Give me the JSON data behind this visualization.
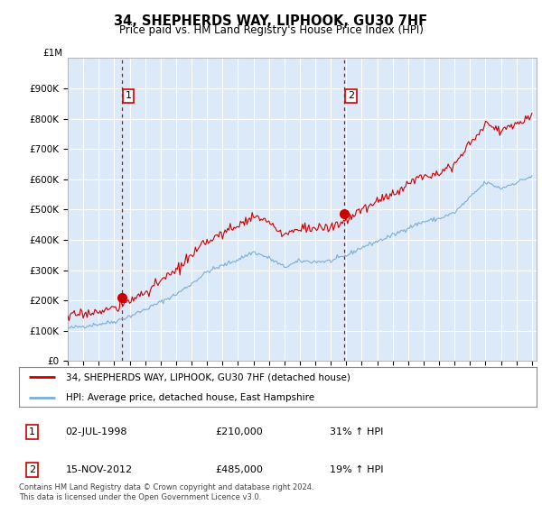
{
  "title": "34, SHEPHERDS WAY, LIPHOOK, GU30 7HF",
  "subtitle": "Price paid vs. HM Land Registry's House Price Index (HPI)",
  "ylim": [
    0,
    1000000
  ],
  "yticks": [
    0,
    100000,
    200000,
    300000,
    400000,
    500000,
    600000,
    700000,
    800000,
    900000
  ],
  "ytick_labels": [
    "£0",
    "£100K",
    "£200K",
    "£300K",
    "£400K",
    "£500K",
    "£600K",
    "£700K",
    "£800K",
    "£900K"
  ],
  "top_label": "£1M",
  "plot_bg": "#dce9f8",
  "grid_color": "#ffffff",
  "red_color": "#cc0000",
  "blue_color": "#7bafd4",
  "purchase1_year": 1998.5,
  "purchase1_price": 210000,
  "purchase2_year": 2012.88,
  "purchase2_price": 485000,
  "legend_label_red": "34, SHEPHERDS WAY, LIPHOOK, GU30 7HF (detached house)",
  "legend_label_blue": "HPI: Average price, detached house, East Hampshire",
  "annotation1_date": "02-JUL-1998",
  "annotation1_price": "£210,000",
  "annotation1_hpi": "31% ↑ HPI",
  "annotation2_date": "15-NOV-2012",
  "annotation2_price": "£485,000",
  "annotation2_hpi": "19% ↑ HPI",
  "footer": "Contains HM Land Registry data © Crown copyright and database right 2024.\nThis data is licensed under the Open Government Licence v3.0.",
  "xlim_left": 1995.0,
  "xlim_right": 2025.3
}
